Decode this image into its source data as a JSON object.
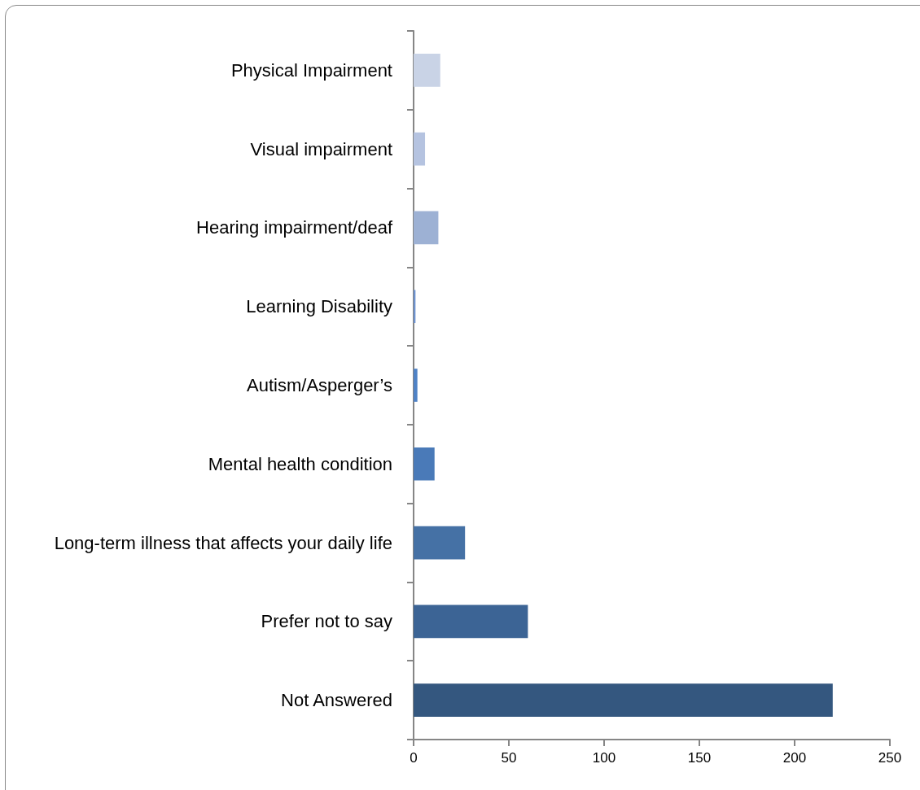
{
  "chart_data": {
    "type": "bar",
    "orientation": "horizontal",
    "categories": [
      "Physical Impairment",
      "Visual impairment",
      "Hearing impairment/deaf",
      "Learning Disability",
      "Autism/Asperger’s",
      "Mental health condition",
      "Long-term illness that affects your daily life",
      "Prefer not to say",
      "Not Answered"
    ],
    "values": [
      14,
      6,
      13,
      1,
      2,
      11,
      27,
      60,
      220
    ],
    "colors": [
      "#c9d3e6",
      "#b5c3e0",
      "#9db1d4",
      "#6e93cf",
      "#4f82c6",
      "#4a7ab8",
      "#4571a5",
      "#3c6495",
      "#34577f"
    ],
    "xlim": [
      0,
      250
    ],
    "xticks": [
      0,
      50,
      100,
      150,
      200,
      250
    ]
  }
}
